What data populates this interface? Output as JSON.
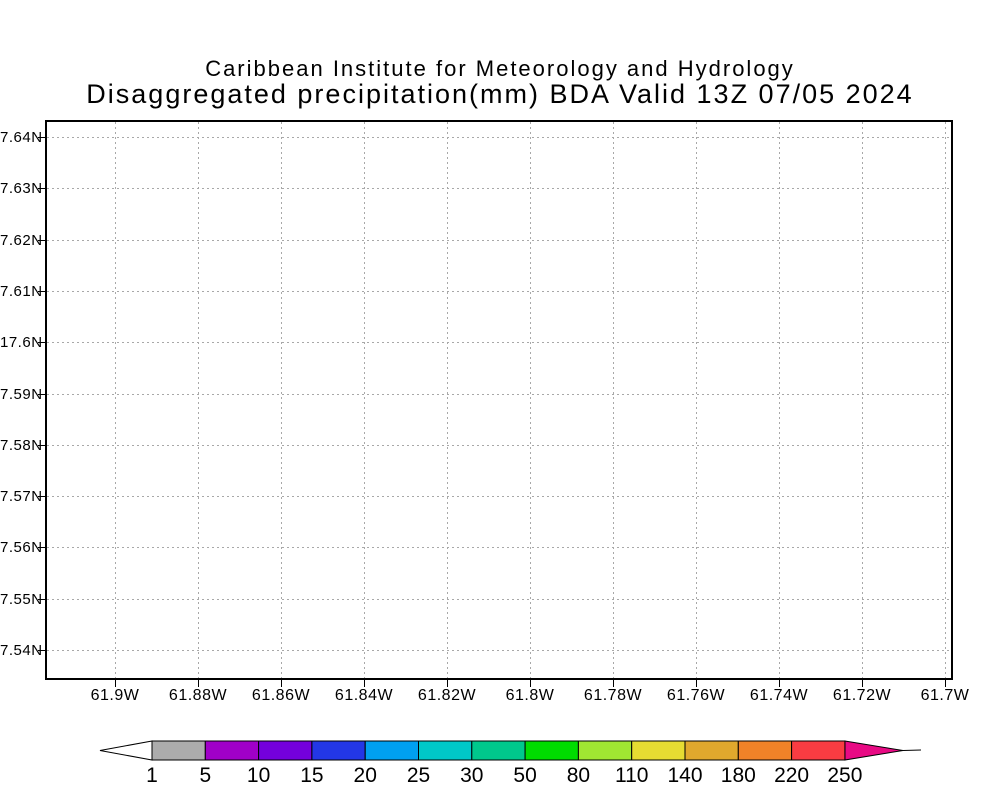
{
  "header": {
    "title": "Caribbean Institute for Meteorology and Hydrology",
    "subtitle": "Disaggregated precipitation(mm) BDA Valid 13Z 07/05 2024"
  },
  "chart_data": {
    "type": "heatmap",
    "title": "Caribbean Institute for Meteorology and Hydrology",
    "subtitle": "Disaggregated precipitation(mm) BDA Valid 13Z 07/05 2024",
    "units": "mm",
    "region": "BDA",
    "valid_time": "13Z 07/05 2024",
    "grid": true,
    "values": [],
    "x_axis": {
      "tick_labels": [
        "61.9W",
        "61.88W",
        "61.86W",
        "61.84W",
        "61.82W",
        "61.8W",
        "61.78W",
        "61.76W",
        "61.74W",
        "61.72W",
        "61.7W"
      ]
    },
    "y_axis": {
      "tick_labels": [
        "7.64N",
        "7.63N",
        "7.62N",
        "7.61N",
        "17.6N",
        "7.59N",
        "7.58N",
        "7.57N",
        "7.56N",
        "7.55N",
        "7.54N"
      ]
    },
    "colorbar": {
      "levels": [
        "1",
        "5",
        "10",
        "15",
        "20",
        "25",
        "30",
        "50",
        "80",
        "110",
        "140",
        "180",
        "220",
        "250"
      ],
      "segment_colors": [
        "#acacac",
        "#a000c8",
        "#7400dc",
        "#2337e6",
        "#00a0f0",
        "#00c8c8",
        "#00c88c",
        "#00dc00",
        "#a0e632",
        "#e6dc32",
        "#e0a82d",
        "#f08228",
        "#f93c42"
      ],
      "below_arrow_color": "#ffffff",
      "above_arrow_color": "#e80a84"
    }
  }
}
